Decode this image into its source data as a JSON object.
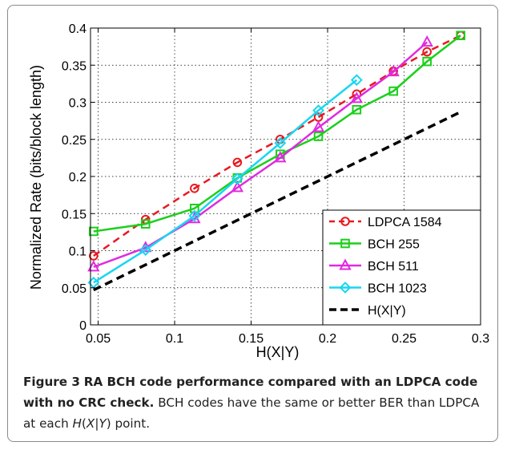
{
  "chart_data": {
    "type": "line",
    "xlabel": "H(X|Y)",
    "ylabel": "Normalized Rate (bits/block length)",
    "xlim": [
      0.045,
      0.3
    ],
    "ylim": [
      0,
      0.4
    ],
    "xticks": [
      0.05,
      0.1,
      0.15,
      0.2,
      0.25,
      0.3
    ],
    "yticks": [
      0,
      0.05,
      0.1,
      0.15,
      0.2,
      0.25,
      0.3,
      0.35,
      0.4
    ],
    "xtick_labels": [
      "0.05",
      "0.1",
      "0.15",
      "0.2",
      "0.25",
      "0.3"
    ],
    "ytick_labels": [
      "0",
      "0.05",
      "0.1",
      "0.15",
      "0.2",
      "0.25",
      "0.3",
      "0.35",
      "0.4"
    ],
    "grid": true,
    "legend_position": "bottom-right",
    "series": [
      {
        "name": "LDPCA 1584",
        "color": "#e8191f",
        "dash": "dashed",
        "marker": "circle",
        "x": [
          0.047,
          0.081,
          0.113,
          0.141,
          0.169,
          0.194,
          0.219,
          0.243,
          0.265,
          0.287
        ],
        "y": [
          0.093,
          0.142,
          0.184,
          0.219,
          0.25,
          0.28,
          0.311,
          0.342,
          0.368,
          0.39
        ]
      },
      {
        "name": "BCH 255",
        "color": "#1ccf1c",
        "dash": "solid",
        "marker": "square",
        "x": [
          0.047,
          0.081,
          0.113,
          0.141,
          0.169,
          0.194,
          0.219,
          0.243,
          0.265,
          0.287
        ],
        "y": [
          0.126,
          0.136,
          0.157,
          0.198,
          0.23,
          0.254,
          0.29,
          0.315,
          0.355,
          0.39
        ]
      },
      {
        "name": "BCH 511",
        "color": "#e02ae0",
        "dash": "solid",
        "marker": "triangle",
        "x": [
          0.047,
          0.081,
          0.113,
          0.141,
          0.169,
          0.194,
          0.219,
          0.243,
          0.265
        ],
        "y": [
          0.078,
          0.104,
          0.143,
          0.185,
          0.225,
          0.266,
          0.305,
          0.341,
          0.381
        ]
      },
      {
        "name": "BCH 1023",
        "color": "#19d6f0",
        "dash": "solid",
        "marker": "diamond",
        "x": [
          0.047,
          0.081,
          0.113,
          0.141,
          0.169,
          0.194,
          0.219
        ],
        "y": [
          0.057,
          0.101,
          0.147,
          0.197,
          0.245,
          0.289,
          0.33
        ]
      },
      {
        "name": "H(X|Y)",
        "color": "#000000",
        "dash": "dashed",
        "marker": "none",
        "x": [
          0.047,
          0.287
        ],
        "y": [
          0.047,
          0.287
        ]
      }
    ]
  },
  "caption": {
    "figure_label": "Figure 3",
    "title": "RA BCH code performance compared with an LDPCA code with no CRC check.",
    "text_before": "BCH codes have the same or better BER than LDPCA at each ",
    "math_H": "H",
    "math_paren_open": "(",
    "math_X": "X",
    "math_bar": "|",
    "math_Y": "Y",
    "math_paren_close": ")",
    "text_after": " point."
  }
}
